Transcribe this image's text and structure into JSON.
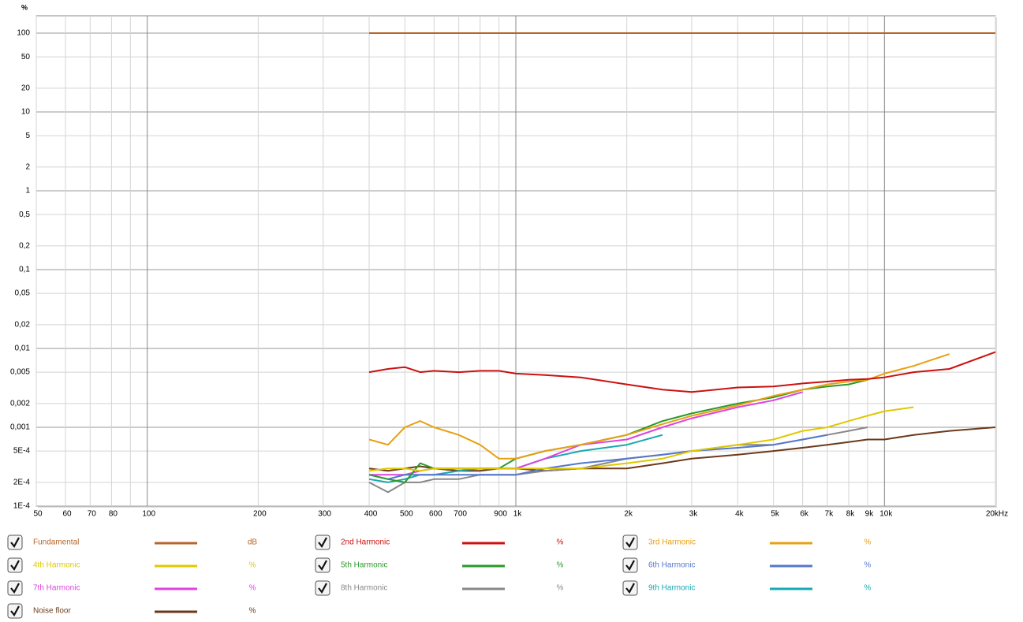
{
  "chart_data": {
    "type": "line",
    "y_label": "%",
    "log_x": true,
    "log_y": true,
    "grid": true,
    "xlim": [
      50,
      20000
    ],
    "ylim": [
      0.0001,
      166
    ],
    "xticks": [
      50,
      60,
      70,
      80,
      100,
      200,
      300,
      400,
      500,
      600,
      700,
      900,
      {
        "value": 1000,
        "label": "1k"
      },
      {
        "value": 2000,
        "label": "2k"
      },
      {
        "value": 3000,
        "label": "3k"
      },
      {
        "value": 4000,
        "label": "4k"
      },
      {
        "value": 5000,
        "label": "5k"
      },
      {
        "value": 6000,
        "label": "6k"
      },
      {
        "value": 7000,
        "label": "7k"
      },
      {
        "value": 8000,
        "label": "8k"
      },
      {
        "value": 9000,
        "label": "9k"
      },
      {
        "value": 10000,
        "label": "10k"
      },
      {
        "value": 20000,
        "label": "20kHz"
      }
    ],
    "x_minor_ticks": [
      90,
      800
    ],
    "yticks": [
      100,
      50,
      20,
      10,
      5,
      2,
      1,
      {
        "value": 0.5,
        "label": "0,5"
      },
      {
        "value": 0.2,
        "label": "0,2"
      },
      {
        "value": 0.1,
        "label": "0,1"
      },
      {
        "value": 0.05,
        "label": "0,05"
      },
      {
        "value": 0.02,
        "label": "0,02"
      },
      {
        "value": 0.01,
        "label": "0,01"
      },
      {
        "value": 0.005,
        "label": "0,005"
      },
      {
        "value": 0.002,
        "label": "0,002"
      },
      {
        "value": 0.001,
        "label": "0,001"
      },
      {
        "value": 0.0005,
        "label": "5E-4"
      },
      {
        "value": 0.0002,
        "label": "2E-4"
      },
      {
        "value": 0.0001,
        "label": "1E-4"
      }
    ],
    "x": [
      400,
      450,
      500,
      550,
      600,
      700,
      800,
      900,
      1000,
      1200,
      1500,
      2000,
      2500,
      3000,
      4000,
      5000,
      6000,
      7000,
      8000,
      9000,
      10000,
      12000,
      15000,
      20000
    ],
    "series": [
      {
        "name": "Fundamental",
        "unit": "dB",
        "color": "#b8652a",
        "values": [
          100,
          100,
          100,
          100,
          100,
          100,
          100,
          100,
          100,
          100,
          100,
          100,
          100,
          100,
          100,
          100,
          100,
          100,
          100,
          100,
          100,
          100,
          100,
          100
        ]
      },
      {
        "name": "2nd Harmonic",
        "unit": "%",
        "color": "#cc1010",
        "values": [
          0.005,
          0.0055,
          0.0058,
          0.005,
          0.0052,
          0.005,
          0.0052,
          0.0052,
          0.0048,
          0.0046,
          0.0043,
          0.0035,
          0.003,
          0.0028,
          0.0032,
          0.0033,
          0.0036,
          0.0038,
          0.004,
          0.0041,
          0.0043,
          0.005,
          0.0055,
          0.009
        ]
      },
      {
        "name": "3rd Harmonic",
        "unit": "%",
        "color": "#e8a010",
        "values": [
          0.0007,
          0.0006,
          0.001,
          0.0012,
          0.001,
          0.0008,
          0.0006,
          0.0004,
          0.0004,
          0.0005,
          0.0006,
          0.0008,
          0.0011,
          0.0014,
          0.0019,
          0.0025,
          0.003,
          0.0035,
          0.0038,
          0.004,
          0.0048,
          0.006,
          0.0085,
          null
        ]
      },
      {
        "name": "4th Harmonic",
        "unit": "%",
        "color": "#e0c800",
        "values": [
          0.00028,
          0.0003,
          0.0003,
          0.00028,
          0.0003,
          0.0003,
          0.0003,
          0.0003,
          0.0003,
          0.0003,
          0.0003,
          0.00035,
          0.0004,
          0.0005,
          0.0006,
          0.0007,
          0.0009,
          0.001,
          0.0012,
          0.0014,
          0.0016,
          0.0018,
          null,
          null
        ]
      },
      {
        "name": "5th Harmonic",
        "unit": "%",
        "color": "#2a9a2a",
        "values": [
          0.00025,
          0.00022,
          0.0002,
          0.00035,
          0.0003,
          0.0003,
          0.0003,
          0.0003,
          0.0004,
          0.0005,
          0.0006,
          0.0008,
          0.0012,
          0.0015,
          0.002,
          0.0024,
          0.003,
          0.0033,
          0.0035,
          0.004,
          null,
          null,
          null,
          null
        ]
      },
      {
        "name": "6th Harmonic",
        "unit": "%",
        "color": "#5577cc",
        "values": [
          0.00025,
          0.00022,
          0.00025,
          0.00025,
          0.00025,
          0.00025,
          0.00025,
          0.00025,
          0.00025,
          0.0003,
          0.00035,
          0.0004,
          0.00045,
          0.0005,
          0.00055,
          0.0006,
          0.0007,
          0.0008,
          null,
          null,
          null,
          null,
          null,
          null
        ]
      },
      {
        "name": "7th Harmonic",
        "unit": "%",
        "color": "#dd44dd",
        "values": [
          0.00025,
          0.00025,
          0.00025,
          0.00028,
          0.0003,
          0.0003,
          0.0003,
          0.0003,
          0.0003,
          0.0004,
          0.0006,
          0.0007,
          0.001,
          0.0013,
          0.0018,
          0.0022,
          0.0028,
          null,
          null,
          null,
          null,
          null,
          null,
          null
        ]
      },
      {
        "name": "8th Harmonic",
        "unit": "%",
        "color": "#888888",
        "values": [
          0.0002,
          0.00015,
          0.0002,
          0.0002,
          0.00022,
          0.00022,
          0.00025,
          0.00025,
          0.00025,
          0.00028,
          0.0003,
          0.0004,
          0.00045,
          0.0005,
          0.0006,
          0.0006,
          0.0007,
          0.0008,
          0.0009,
          0.001,
          null,
          null,
          null,
          null
        ]
      },
      {
        "name": "9th Harmonic",
        "unit": "%",
        "color": "#18a8b0",
        "values": [
          0.00022,
          0.0002,
          0.00022,
          0.00025,
          0.00025,
          0.00028,
          0.0003,
          0.0003,
          0.0003,
          0.0004,
          0.0005,
          0.0006,
          0.0008,
          null,
          null,
          null,
          null,
          null,
          null,
          null,
          null,
          null,
          null,
          null
        ]
      },
      {
        "name": "Noise floor",
        "unit": "%",
        "color": "#6b3a1a",
        "values": [
          0.0003,
          0.00028,
          0.0003,
          0.00032,
          0.0003,
          0.00028,
          0.00028,
          0.0003,
          0.0003,
          0.00028,
          0.0003,
          0.0003,
          0.00035,
          0.0004,
          0.00045,
          0.0005,
          0.00055,
          0.0006,
          0.00065,
          0.0007,
          0.0007,
          0.0008,
          0.0009,
          0.001
        ]
      }
    ]
  }
}
